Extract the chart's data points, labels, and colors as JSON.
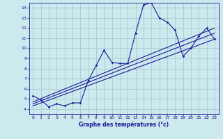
{
  "xlabel": "Graphe des températures (°c)",
  "bg_color": "#cce9ed",
  "grid_color": "#aacfd5",
  "line_color": "#1a1a99",
  "xlim": [
    -0.5,
    23.5
  ],
  "ylim": [
    3.5,
    14.5
  ],
  "xticks": [
    0,
    1,
    2,
    3,
    4,
    5,
    6,
    7,
    8,
    9,
    10,
    11,
    12,
    13,
    14,
    15,
    16,
    17,
    18,
    19,
    20,
    21,
    22,
    23
  ],
  "yticks": [
    4,
    5,
    6,
    7,
    8,
    9,
    10,
    11,
    12,
    13,
    14
  ],
  "main_x": [
    0,
    1,
    2,
    3,
    4,
    5,
    6,
    7,
    8,
    9,
    10,
    11,
    12,
    13,
    14,
    15,
    16,
    17,
    18,
    19,
    20,
    21,
    22,
    23
  ],
  "main_y": [
    5.3,
    4.9,
    4.2,
    4.5,
    4.3,
    4.6,
    4.6,
    6.8,
    8.3,
    9.8,
    8.6,
    8.5,
    8.5,
    11.5,
    14.3,
    14.5,
    13.0,
    12.6,
    11.8,
    9.2,
    10.0,
    11.2,
    12.0,
    10.9
  ],
  "trend_lines": [
    {
      "x": [
        0,
        23
      ],
      "y": [
        4.7,
        12.0
      ]
    },
    {
      "x": [
        0,
        23
      ],
      "y": [
        4.5,
        11.5
      ]
    },
    {
      "x": [
        0,
        23
      ],
      "y": [
        4.3,
        10.9
      ]
    }
  ]
}
